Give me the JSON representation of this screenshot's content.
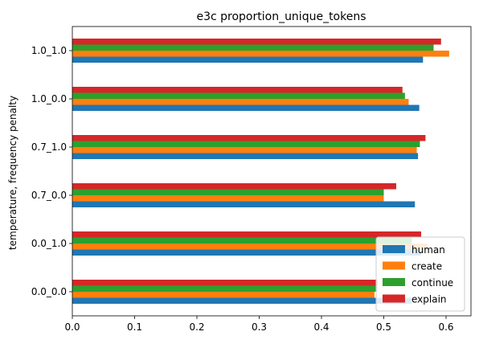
{
  "chart_data": {
    "type": "bar",
    "orientation": "horizontal",
    "title": "e3c proportion_unique_tokens",
    "xlabel": "",
    "ylabel": "temperature, frequency penalty",
    "categories": [
      "0.0_0.0",
      "0.0_1.0",
      "0.7_0.0",
      "0.7_1.0",
      "1.0_0.0",
      "1.0_1.0"
    ],
    "xlim": [
      0,
      0.64
    ],
    "xticks": [
      "0.0",
      "0.1",
      "0.2",
      "0.3",
      "0.4",
      "0.5",
      "0.6"
    ],
    "grid": false,
    "legend_position": "lower-right",
    "series": [
      {
        "name": "human",
        "color": "#1f77b4",
        "values": [
          0.545,
          0.56,
          0.55,
          0.555,
          0.557,
          0.563
        ]
      },
      {
        "name": "create",
        "color": "#ff7f0e",
        "values": [
          0.485,
          0.57,
          0.5,
          0.553,
          0.54,
          0.605
        ]
      },
      {
        "name": "continue",
        "color": "#2ca02c",
        "values": [
          0.49,
          0.545,
          0.5,
          0.558,
          0.534,
          0.58
        ]
      },
      {
        "name": "explain",
        "color": "#d62728",
        "values": [
          0.49,
          0.56,
          0.52,
          0.567,
          0.53,
          0.592
        ]
      }
    ]
  }
}
